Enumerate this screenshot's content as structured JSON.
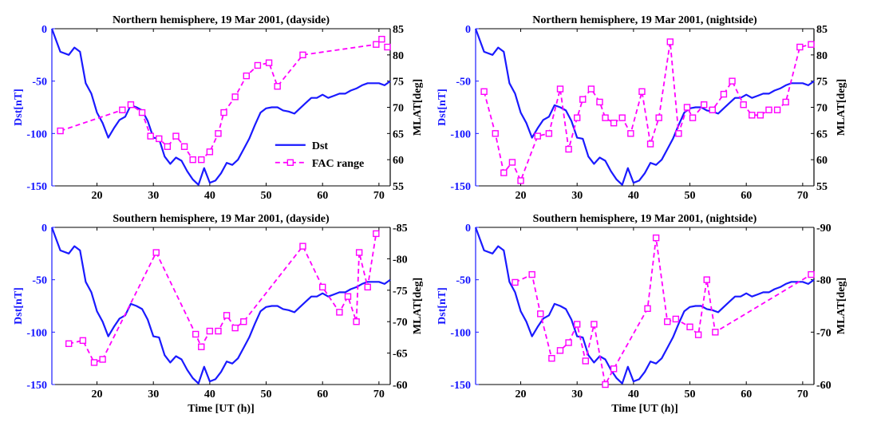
{
  "chart_data": [
    {
      "type": "line",
      "title": "Northern hemisphere, 19 Mar 2001, (dayside)",
      "xlabel": "",
      "ylabel": "Dst[nT]",
      "y2label": "MLAT[deg]",
      "xlim": [
        12,
        72
      ],
      "ylim": [
        -150,
        0
      ],
      "y2lim": [
        55,
        85
      ],
      "xticks": [
        20,
        30,
        40,
        50,
        60,
        70
      ],
      "yticks": [
        -150,
        -100,
        -50,
        0
      ],
      "y2ticks": [
        55,
        60,
        65,
        70,
        75,
        80,
        85
      ],
      "legend": {
        "position": "bottom-center",
        "entries": [
          "Dst",
          "FAC range"
        ]
      },
      "series": [
        {
          "name": "FAC range",
          "axis": "right",
          "style": "dashed-square",
          "x": [
            13.5,
            24.5,
            26,
            28,
            29.5,
            31,
            32.5,
            34,
            35.5,
            37,
            38.5,
            40,
            41.5,
            42.5,
            44.5,
            46.5,
            48.5,
            50.5,
            52,
            56.5,
            69.5,
            70.5,
            71.5
          ],
          "y": [
            65.5,
            69.5,
            70.5,
            69,
            64.5,
            64,
            62.5,
            64.5,
            62.5,
            60,
            60,
            61.5,
            65,
            69,
            72,
            76,
            78,
            78.5,
            74,
            80,
            82,
            83,
            81.5
          ]
        }
      ]
    },
    {
      "type": "line",
      "title": "Northern hemisphere, 19 Mar 2001, (nightside)",
      "xlabel": "",
      "ylabel": "Dst[nT]",
      "y2label": "MLAT[deg]",
      "xlim": [
        12,
        72
      ],
      "ylim": [
        -150,
        0
      ],
      "y2lim": [
        55,
        85
      ],
      "xticks": [
        20,
        30,
        40,
        50,
        60,
        70
      ],
      "yticks": [
        -150,
        -100,
        -50,
        0
      ],
      "y2ticks": [
        55,
        60,
        65,
        70,
        75,
        80,
        85
      ],
      "series": [
        {
          "name": "FAC range",
          "axis": "right",
          "style": "dashed-square",
          "x": [
            13.5,
            15.5,
            17,
            18.5,
            20,
            23,
            25,
            27,
            28.5,
            30,
            31,
            32.5,
            34,
            35,
            36.5,
            38,
            39.5,
            41.5,
            43,
            44.5,
            46.5,
            48,
            49.5,
            50.5,
            52.5,
            54,
            56,
            57.5,
            59.5,
            61,
            62.5,
            64,
            65.5,
            67,
            69.5,
            71.5
          ],
          "y": [
            73,
            65,
            57.5,
            59.5,
            56,
            64.5,
            65,
            73.5,
            62,
            68,
            71.5,
            73.5,
            71,
            68,
            67,
            68,
            65,
            73,
            63,
            68,
            82.5,
            65,
            70,
            68,
            70.5,
            69.5,
            72.5,
            75,
            70.5,
            68.5,
            68.5,
            69.5,
            69.5,
            71,
            81.5,
            82
          ]
        }
      ]
    },
    {
      "type": "line",
      "title": "Southern hemisphere, 19 Mar 2001, (dayside)",
      "xlabel": "Time [UT (h)]",
      "ylabel": "Dst[nT]",
      "y2label": "MLAT[deg]",
      "xlim": [
        12,
        72
      ],
      "ylim": [
        -150,
        0
      ],
      "y2lim": [
        -60,
        -85
      ],
      "xticks": [
        20,
        30,
        40,
        50,
        60,
        70
      ],
      "yticks": [
        -150,
        -100,
        -50,
        0
      ],
      "y2ticks": [
        -60,
        -65,
        -70,
        -75,
        -80,
        -85
      ],
      "series": [
        {
          "name": "FAC range",
          "axis": "right",
          "style": "dashed-square",
          "x": [
            15,
            17.5,
            19.5,
            21,
            30.5,
            37.5,
            38.5,
            40,
            41.5,
            43,
            44.5,
            46,
            56.5,
            60,
            63,
            64.5,
            66,
            66.5,
            68,
            69.5
          ],
          "y": [
            -66.5,
            -67,
            -63.5,
            -64,
            -81,
            -68,
            -66,
            -68.5,
            -68.5,
            -71,
            -69,
            -70,
            -82,
            -75.5,
            -71.5,
            -74,
            -70,
            -81,
            -75.5,
            -84
          ]
        }
      ]
    },
    {
      "type": "line",
      "title": "Southern hemisphere, 19 Mar 2001, (nightside)",
      "xlabel": "Time [UT (h)]",
      "ylabel": "Dst[nT]",
      "y2label": "MLAT[deg]",
      "xlim": [
        12,
        72
      ],
      "ylim": [
        -150,
        0
      ],
      "y2lim": [
        -60,
        -90
      ],
      "xticks": [
        20,
        30,
        40,
        50,
        60,
        70
      ],
      "yticks": [
        -150,
        -100,
        -50,
        0
      ],
      "y2ticks": [
        -60,
        -70,
        -80,
        -90
      ],
      "series": [
        {
          "name": "FAC range",
          "axis": "right",
          "style": "dashed-square",
          "x": [
            19,
            22,
            23.5,
            25.5,
            27,
            28.5,
            30,
            31.5,
            33,
            35,
            36.5,
            42.5,
            44,
            46,
            47.5,
            50,
            51.5,
            53,
            54.5,
            71.5
          ],
          "y": [
            -79.5,
            -81,
            -73.5,
            -65,
            -66.5,
            -68,
            -71.5,
            -64.5,
            -71.5,
            -60,
            -63,
            -74.5,
            -88,
            -72,
            -72.5,
            -71,
            -69.5,
            -80,
            -70,
            -81
          ]
        }
      ]
    }
  ],
  "dst_series": {
    "name": "Dst",
    "axis": "left",
    "style": "solid",
    "x": [
      12,
      13.5,
      15,
      16,
      17,
      18,
      19,
      20,
      21,
      22,
      23,
      24,
      25,
      26,
      27,
      28,
      29,
      30,
      31,
      32,
      33,
      34,
      35,
      36,
      37,
      38,
      39,
      40,
      41,
      42,
      43,
      44,
      45,
      46,
      47,
      48,
      49,
      50,
      51,
      52,
      53,
      54,
      55,
      56,
      57,
      58,
      59,
      60,
      61,
      62,
      63,
      64,
      65,
      66,
      67,
      68,
      69,
      70,
      71,
      72
    ],
    "y": [
      0,
      -22,
      -25,
      -18,
      -22,
      -52,
      -62,
      -80,
      -90,
      -104,
      -95,
      -87,
      -84,
      -73,
      -75,
      -78,
      -88,
      -104,
      -105,
      -122,
      -129,
      -123,
      -126,
      -136,
      -144,
      -149,
      -133,
      -147,
      -145,
      -138,
      -128,
      -130,
      -125,
      -115,
      -105,
      -92,
      -80,
      -76,
      -75,
      -75,
      -78,
      -79,
      -81,
      -76,
      -71,
      -66,
      -66,
      -63,
      -66,
      -64,
      -62,
      -62,
      -59,
      -57,
      -54,
      -52,
      -52,
      -52,
      -54,
      -50
    ]
  }
}
